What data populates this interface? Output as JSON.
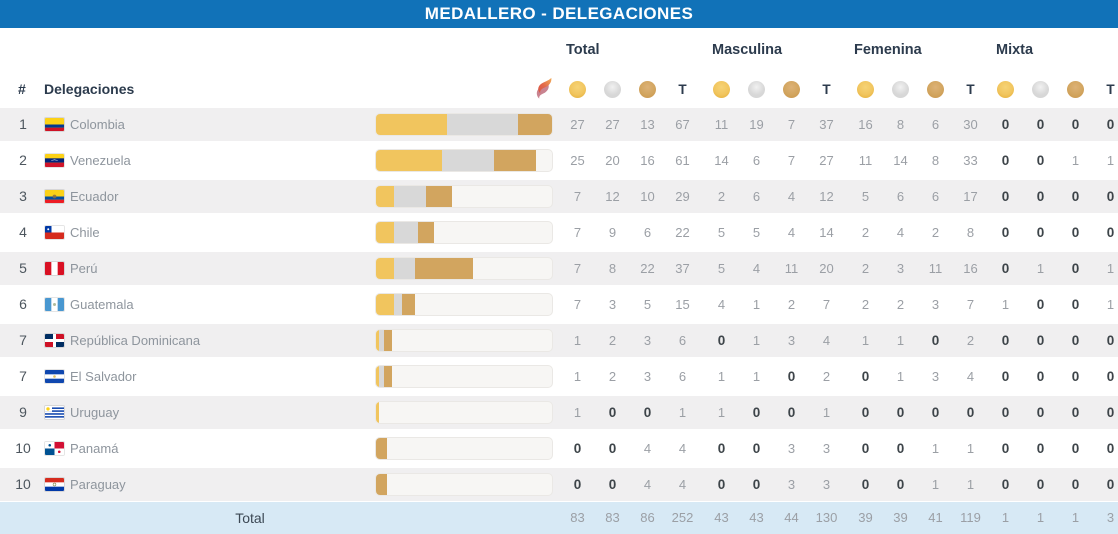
{
  "header": {
    "title": "MEDALLERO - DELEGACIONES"
  },
  "colors": {
    "accent": "#1172b8",
    "gold": "#f1c55e",
    "silver": "#d8d8d8",
    "bronze": "#d2a55f",
    "stripe": "#f0eff0",
    "total_row_bg": "#d7e9f5",
    "header_text": "#2c3b4d",
    "number_text": "#9b9fa5",
    "zero_text": "#3d4449"
  },
  "icons": {
    "torch": "torch-flame-icon",
    "gold": "gold-medal-icon",
    "silver": "silver-medal-icon",
    "bronze": "bronze-medal-icon"
  },
  "table": {
    "rank_header": "#",
    "delegations_header": "Delegaciones",
    "t_header": "T",
    "groups": [
      {
        "label": "Total"
      },
      {
        "label": "Masculina"
      },
      {
        "label": "Femenina"
      },
      {
        "label": "Mixta"
      }
    ],
    "bar_max": 67,
    "rows": [
      {
        "rank": "1",
        "country": "Colombia",
        "flag": "colombia",
        "total": [
          27,
          27,
          13,
          67
        ],
        "masculina": [
          11,
          19,
          7,
          37
        ],
        "femenina": [
          16,
          8,
          6,
          30
        ],
        "mixta": [
          0,
          0,
          0,
          0
        ]
      },
      {
        "rank": "2",
        "country": "Venezuela",
        "flag": "venezuela",
        "total": [
          25,
          20,
          16,
          61
        ],
        "masculina": [
          14,
          6,
          7,
          27
        ],
        "femenina": [
          11,
          14,
          8,
          33
        ],
        "mixta": [
          0,
          0,
          1,
          1
        ]
      },
      {
        "rank": "3",
        "country": "Ecuador",
        "flag": "ecuador",
        "total": [
          7,
          12,
          10,
          29
        ],
        "masculina": [
          2,
          6,
          4,
          12
        ],
        "femenina": [
          5,
          6,
          6,
          17
        ],
        "mixta": [
          0,
          0,
          0,
          0
        ]
      },
      {
        "rank": "4",
        "country": "Chile",
        "flag": "chile",
        "total": [
          7,
          9,
          6,
          22
        ],
        "masculina": [
          5,
          5,
          4,
          14
        ],
        "femenina": [
          2,
          4,
          2,
          8
        ],
        "mixta": [
          0,
          0,
          0,
          0
        ]
      },
      {
        "rank": "5",
        "country": "Perú",
        "flag": "peru",
        "total": [
          7,
          8,
          22,
          37
        ],
        "masculina": [
          5,
          4,
          11,
          20
        ],
        "femenina": [
          2,
          3,
          11,
          16
        ],
        "mixta": [
          0,
          1,
          0,
          1
        ]
      },
      {
        "rank": "6",
        "country": "Guatemala",
        "flag": "guatemala",
        "total": [
          7,
          3,
          5,
          15
        ],
        "masculina": [
          4,
          1,
          2,
          7
        ],
        "femenina": [
          2,
          2,
          3,
          7
        ],
        "mixta": [
          1,
          0,
          0,
          1
        ]
      },
      {
        "rank": "7",
        "country": "República Dominicana",
        "flag": "republica-dominicana",
        "total": [
          1,
          2,
          3,
          6
        ],
        "masculina": [
          0,
          1,
          3,
          4
        ],
        "femenina": [
          1,
          1,
          0,
          2
        ],
        "mixta": [
          0,
          0,
          0,
          0
        ]
      },
      {
        "rank": "7",
        "country": "El Salvador",
        "flag": "el-salvador",
        "total": [
          1,
          2,
          3,
          6
        ],
        "masculina": [
          1,
          1,
          0,
          2
        ],
        "femenina": [
          0,
          1,
          3,
          4
        ],
        "mixta": [
          0,
          0,
          0,
          0
        ]
      },
      {
        "rank": "9",
        "country": "Uruguay",
        "flag": "uruguay",
        "total": [
          1,
          0,
          0,
          1
        ],
        "masculina": [
          1,
          0,
          0,
          1
        ],
        "femenina": [
          0,
          0,
          0,
          0
        ],
        "mixta": [
          0,
          0,
          0,
          0
        ]
      },
      {
        "rank": "10",
        "country": "Panamá",
        "flag": "panama",
        "total": [
          0,
          0,
          4,
          4
        ],
        "masculina": [
          0,
          0,
          3,
          3
        ],
        "femenina": [
          0,
          0,
          1,
          1
        ],
        "mixta": [
          0,
          0,
          0,
          0
        ]
      },
      {
        "rank": "10",
        "country": "Paraguay",
        "flag": "paraguay",
        "total": [
          0,
          0,
          4,
          4
        ],
        "masculina": [
          0,
          0,
          3,
          3
        ],
        "femenina": [
          0,
          0,
          1,
          1
        ],
        "mixta": [
          0,
          0,
          0,
          0
        ]
      }
    ],
    "footer": {
      "label": "Total",
      "total": [
        83,
        83,
        86,
        252
      ],
      "masculina": [
        43,
        43,
        44,
        130
      ],
      "femenina": [
        39,
        39,
        41,
        119
      ],
      "mixta": [
        1,
        1,
        1,
        3
      ]
    }
  }
}
